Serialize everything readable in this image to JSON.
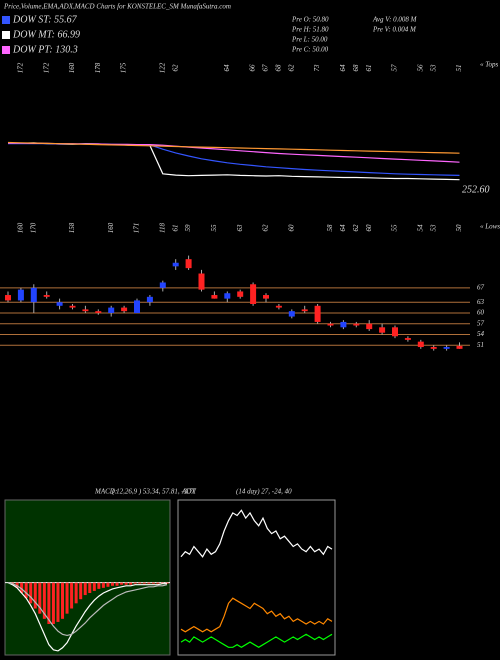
{
  "header": {
    "title": "Price,Volume,EMA,ADX,MACD Charts for KONSTELEC_SM MunafaSutra.com",
    "legend": [
      {
        "name": "DOW ST: 55.67",
        "color": "#3355ff"
      },
      {
        "name": "DOW MT: 66.99",
        "color": "#ffffff"
      },
      {
        "name": "DOW PT: 130.3",
        "color": "#ff66ff"
      }
    ],
    "info": [
      "Pre O: 50.80",
      "Pre H: 51.80",
      "Pre L: 50.00",
      "Pre C: 50.00",
      "Avg V: 0.008 M",
      "Pre V: 0.004 M"
    ]
  },
  "chart_data": [
    {
      "type": "line",
      "marker": "« Tops",
      "last_label": "252.60",
      "ylim": [
        50,
        180
      ],
      "tops": [
        null,
        172,
        null,
        172,
        null,
        160,
        null,
        178,
        null,
        175,
        null,
        null,
        122,
        62,
        null,
        null,
        null,
        64,
        null,
        66,
        67,
        68,
        62,
        null,
        73,
        null,
        64,
        68,
        61,
        null,
        57,
        null,
        56,
        53,
        null,
        51
      ],
      "series": [
        {
          "color": "#ffffff",
          "values": [
            170,
            169,
            171,
            168,
            167,
            166,
            168,
            167,
            165,
            164,
            163,
            162,
            70,
            66,
            64,
            65,
            66,
            67,
            65,
            64,
            63,
            64,
            62,
            61,
            60,
            59,
            58,
            58,
            57,
            56,
            55,
            55,
            54,
            53,
            52,
            51
          ]
        },
        {
          "color": "#3355ff",
          "values": [
            168,
            168,
            168,
            168,
            167,
            167,
            167,
            166,
            166,
            165,
            165,
            164,
            150,
            138,
            128,
            119,
            112,
            106,
            101,
            97,
            93,
            90,
            87,
            84,
            82,
            80,
            78,
            76,
            74,
            72,
            70,
            69,
            68,
            67,
            66,
            65
          ]
        },
        {
          "color": "#ff66ff",
          "values": [
            170,
            170,
            169,
            169,
            168,
            168,
            167,
            167,
            166,
            166,
            165,
            165,
            163,
            160,
            157,
            154,
            151,
            148,
            145,
            142,
            139,
            136,
            134,
            132,
            130,
            128,
            126,
            124,
            122,
            120,
            118,
            116,
            114,
            112,
            110,
            108
          ]
        },
        {
          "color": "#ff9933",
          "values": [
            172,
            171,
            170,
            169,
            168,
            167,
            166,
            165,
            164,
            163,
            162,
            161,
            160,
            159,
            158,
            157,
            156,
            155,
            154,
            153,
            152,
            151,
            150,
            149,
            148,
            147,
            146,
            145,
            144,
            143,
            142,
            141,
            140,
            139,
            138,
            137
          ]
        }
      ]
    },
    {
      "type": "candlestick",
      "marker": "« Lows",
      "ylim": [
        48,
        77
      ],
      "yticks": [
        67,
        63,
        60,
        57,
        54,
        51
      ],
      "grid_color": "#b0703a",
      "up_color": "#2244ff",
      "down_color": "#ff2222",
      "lows": [
        null,
        160,
        170,
        null,
        null,
        158,
        null,
        null,
        160,
        null,
        171,
        null,
        118,
        61,
        59,
        null,
        55,
        null,
        63,
        null,
        62,
        null,
        60,
        null,
        null,
        58,
        64,
        62,
        60,
        null,
        55,
        null,
        54,
        53,
        null,
        50
      ],
      "open": [
        65,
        63.5,
        63,
        65,
        62,
        62,
        61,
        60.5,
        60,
        61.5,
        60,
        63,
        67,
        73,
        75,
        71,
        65,
        64,
        66,
        68,
        65,
        62,
        59,
        61,
        62,
        57,
        56,
        57,
        57,
        56,
        56,
        53,
        52,
        50.5,
        50,
        50.8
      ],
      "high": [
        66,
        67,
        68,
        66,
        64,
        62.5,
        62,
        61,
        62,
        62,
        64,
        65,
        69,
        75,
        76,
        72,
        66,
        66,
        66.5,
        68.5,
        65.5,
        62.5,
        61,
        62,
        62.5,
        57.5,
        58,
        57.5,
        58,
        57,
        56.5,
        53.5,
        52.5,
        51,
        51,
        51.8
      ],
      "low": [
        63,
        63,
        60,
        64,
        61,
        61,
        60,
        59.5,
        59,
        60,
        60,
        62,
        66,
        72,
        72,
        66,
        64,
        63,
        64,
        62,
        63,
        61,
        58.5,
        60,
        57,
        56,
        55.5,
        56,
        55,
        54,
        53,
        52,
        50,
        49.5,
        49.5,
        50
      ],
      "close": [
        63.5,
        66.5,
        67,
        64.5,
        63,
        61.5,
        60.5,
        60,
        61.5,
        60.5,
        63.5,
        64.5,
        68.5,
        74,
        72.5,
        66.5,
        64,
        65.5,
        64.5,
        62.5,
        64,
        61.5,
        60.5,
        60.5,
        57.5,
        56.5,
        57.5,
        56.5,
        55.5,
        54.5,
        53.5,
        52.5,
        50.5,
        50,
        50.5,
        50
      ]
    },
    {
      "type": "macd",
      "label": "MACD:",
      "params": "( 12,26,9 ) 53.34, 57.81, -3.77",
      "ylim": [
        -7,
        8
      ],
      "background": "#003300",
      "hist_color": "#ff2222",
      "hist": [
        0,
        -0.2,
        -0.5,
        -1,
        -1.5,
        -2,
        -2.5,
        -3,
        -3.5,
        -4,
        -4,
        -3.8,
        -3.5,
        -3,
        -2.5,
        -2,
        -1.6,
        -1.2,
        -1,
        -0.8,
        -0.6,
        -0.5,
        -0.4,
        -0.3,
        -0.3,
        -0.2,
        -0.2,
        -0.2,
        -0.1,
        -0.1,
        -0.1,
        -0.1,
        -0.1,
        -0.1,
        -0.1,
        -0.1
      ],
      "series": [
        {
          "color": "#ffffff",
          "values": [
            0,
            -0.2,
            -0.5,
            -1,
            -1.5,
            -2.2,
            -3,
            -4,
            -5,
            -6,
            -6.5,
            -6.6,
            -6.3,
            -5.8,
            -5,
            -4.2,
            -3.5,
            -2.8,
            -2.2,
            -1.7,
            -1.3,
            -1,
            -0.8,
            -0.6,
            -0.5,
            -0.4,
            -0.3,
            -0.3,
            -0.2,
            -0.2,
            -0.2,
            -0.2,
            -0.2,
            -0.2,
            -0.1,
            -0.1
          ]
        },
        {
          "color": "#bbbbbb",
          "values": [
            0,
            -0.1,
            -0.3,
            -0.6,
            -1,
            -1.4,
            -1.9,
            -2.4,
            -3,
            -3.6,
            -4.2,
            -4.7,
            -5,
            -5.1,
            -5,
            -4.7,
            -4.3,
            -3.9,
            -3.4,
            -3,
            -2.6,
            -2.2,
            -1.9,
            -1.6,
            -1.3,
            -1.1,
            -0.9,
            -0.8,
            -0.7,
            -0.6,
            -0.5,
            -0.4,
            -0.4,
            -0.3,
            -0.3,
            -0.2
          ]
        }
      ]
    },
    {
      "type": "adx",
      "label": "ADX",
      "params": "(14 day) 27, -24, 40",
      "ylim": [
        0,
        60
      ],
      "background": "#000000",
      "series": [
        {
          "color": "#ffffff",
          "values": [
            38,
            40,
            39,
            42,
            40,
            38,
            41,
            39,
            40,
            43,
            48,
            52,
            55,
            54,
            56,
            53,
            55,
            52,
            50,
            53,
            49,
            47,
            48,
            45,
            46,
            44,
            42,
            43,
            41,
            40,
            42,
            40,
            41,
            39,
            42,
            41
          ]
        },
        {
          "color": "#ff8800",
          "values": [
            10,
            9,
            10,
            11,
            10,
            9,
            10,
            9,
            10,
            11,
            15,
            20,
            22,
            21,
            20,
            19,
            18,
            20,
            19,
            18,
            16,
            17,
            15,
            16,
            14,
            15,
            13,
            14,
            13,
            12,
            13,
            12,
            13,
            12,
            14,
            13
          ]
        },
        {
          "color": "#00ff00",
          "values": [
            5,
            6,
            5,
            7,
            6,
            5,
            6,
            7,
            6,
            5,
            4,
            3,
            3,
            4,
            3,
            4,
            5,
            4,
            3,
            4,
            5,
            6,
            7,
            6,
            5,
            6,
            7,
            6,
            7,
            8,
            7,
            6,
            7,
            6,
            7,
            8
          ]
        }
      ]
    }
  ]
}
